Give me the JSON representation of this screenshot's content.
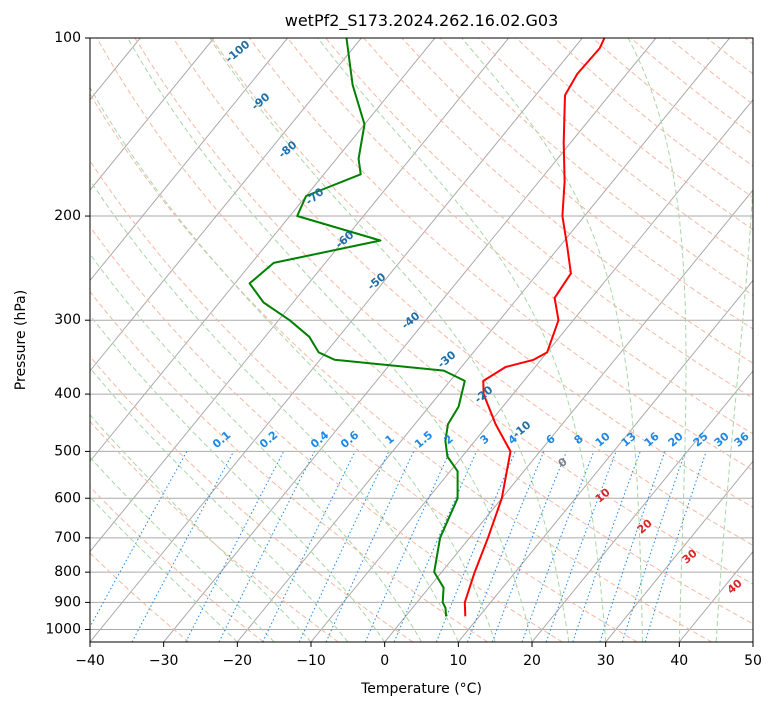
{
  "chart_data": {
    "type": "line",
    "subtype": "skew-t log-p diagram",
    "title": "wetPf2_S173.2024.262.16.02.G03",
    "xlabel": "Temperature (°C)",
    "ylabel": "Pressure (hPa)",
    "xlim": [
      -40,
      50
    ],
    "ylim": [
      1050,
      100
    ],
    "y_scale": "log",
    "x_ticks": [
      -40,
      -30,
      -20,
      -10,
      0,
      10,
      20,
      30,
      40,
      50
    ],
    "x_tick_labels": [
      "−40",
      "−30",
      "−20",
      "−10",
      "0",
      "10",
      "20",
      "30",
      "40",
      "50"
    ],
    "y_ticks": [
      100,
      200,
      300,
      400,
      500,
      600,
      700,
      800,
      900,
      1000
    ],
    "y_tick_labels": [
      "100",
      "200",
      "300",
      "400",
      "500",
      "600",
      "700",
      "800",
      "900",
      "1000"
    ],
    "grid": true,
    "series": [
      {
        "role": "temperature",
        "color": "#ff0000",
        "points": [
          [
            8.1,
            950
          ],
          [
            6.5,
            900
          ],
          [
            4.5,
            800
          ],
          [
            2.5,
            700
          ],
          [
            0,
            600
          ],
          [
            -4,
            500
          ],
          [
            -9,
            450
          ],
          [
            -14,
            400
          ],
          [
            -15.5,
            380
          ],
          [
            -14,
            360
          ],
          [
            -11,
            350
          ],
          [
            -10,
            340
          ],
          [
            -12,
            300
          ],
          [
            -15,
            275
          ],
          [
            -15.5,
            250
          ],
          [
            -19,
            225
          ],
          [
            -23,
            200
          ],
          [
            -26.5,
            175
          ],
          [
            -31,
            150
          ],
          [
            -36,
            125
          ],
          [
            -36.7,
            115
          ],
          [
            -36.5,
            104
          ],
          [
            -37,
            100
          ]
        ]
      },
      {
        "role": "dewpoint",
        "color": "#008000",
        "points": [
          [
            5.5,
            950
          ],
          [
            4.5,
            920
          ],
          [
            3.5,
            900
          ],
          [
            2,
            850
          ],
          [
            -1,
            800
          ],
          [
            -4,
            700
          ],
          [
            -6,
            600
          ],
          [
            -9,
            540
          ],
          [
            -12,
            510
          ],
          [
            -14,
            480
          ],
          [
            -15.5,
            450
          ],
          [
            -16,
            420
          ],
          [
            -18,
            380
          ],
          [
            -22,
            365
          ],
          [
            -38,
            350
          ],
          [
            -41,
            340
          ],
          [
            -44,
            320
          ],
          [
            -48.5,
            300
          ],
          [
            -54,
            280
          ],
          [
            -58,
            260
          ],
          [
            -57,
            240
          ],
          [
            -45,
            220
          ],
          [
            -59,
            200
          ],
          [
            -60,
            185
          ],
          [
            -55,
            170
          ],
          [
            -57,
            160
          ],
          [
            -60,
            140
          ],
          [
            -66,
            120
          ],
          [
            -72,
            100
          ]
        ]
      }
    ],
    "reference_lines": {
      "dry_adiabat_labels_theta_c": [
        "-100",
        "-90",
        "-80",
        "-70",
        "-60",
        "-50",
        "-40",
        "-30",
        "-20",
        "-10"
      ],
      "mixing_ratio_labels_gkg": [
        "0.1",
        "0.2",
        "0.4",
        "0.6",
        "1",
        "1.5",
        "2",
        "3",
        "4",
        "6",
        "8",
        "10",
        "13",
        "16",
        "20",
        "25",
        "30",
        "36"
      ],
      "moist_adiabat_labels_c": [
        "0",
        "10",
        "20",
        "30",
        "40"
      ]
    },
    "colors": {
      "isotherms": "#aaaaaa",
      "dry_adiabats": "#f4b9a3",
      "moist_adiabats": "#a9d6a9",
      "mixing_ratio": "#1e88e5",
      "dry_adiabat_label": "#1f6fa8",
      "moist_adiabat_label": "#d62728",
      "zero_label": "#808080"
    }
  }
}
